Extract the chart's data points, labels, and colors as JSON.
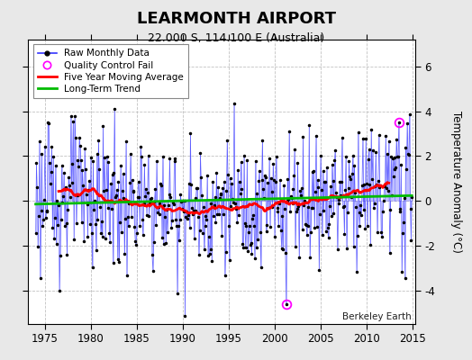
{
  "title": "LEARMONTH AIRPORT",
  "subtitle": "22.000 S, 114.100 E (Australia)",
  "ylabel": "Temperature Anomaly (°C)",
  "credit": "Berkeley Earth",
  "ylim": [
    -5.5,
    7.2
  ],
  "xlim": [
    1973.2,
    2015.3
  ],
  "yticks": [
    -4,
    -2,
    0,
    2,
    4,
    6
  ],
  "xticks": [
    1975,
    1980,
    1985,
    1990,
    1995,
    2000,
    2005,
    2010,
    2015
  ],
  "background_color": "#e8e8e8",
  "plot_bg_color": "#ffffff",
  "line_color": "#3333ff",
  "fill_color": "#9999ff",
  "marker_color": "#000000",
  "moving_avg_color": "#ff0000",
  "trend_color": "#00bb00",
  "qc_fail_color": "#ff00ff",
  "start_year": 1974.0,
  "end_year": 2014.99,
  "seed": 123
}
